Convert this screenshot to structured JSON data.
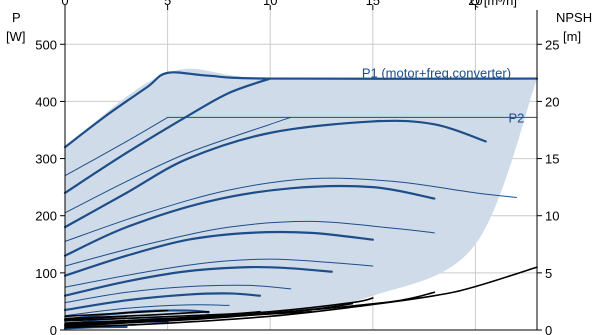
{
  "colors": {
    "curve": "#1d4e89",
    "envelope_fill": "#cfdbe8",
    "npsh": "#000000",
    "grid": "#cccccc",
    "axis": "#000000"
  },
  "chart_data": {
    "type": "line",
    "title": "",
    "grid": true,
    "x_axis": {
      "label": "Q [m³/h]",
      "ticks": [
        0,
        5,
        10,
        15,
        20
      ],
      "tick_labels": [
        "0",
        "5",
        "10",
        "15",
        "20"
      ],
      "range": [
        0,
        23
      ]
    },
    "y_left": {
      "label_line1": "P",
      "label_line2": "[W]",
      "ticks": [
        0,
        100,
        200,
        300,
        400,
        500
      ],
      "tick_labels": [
        "0",
        "100",
        "200",
        "300",
        "400",
        "500"
      ],
      "range": [
        0,
        560
      ]
    },
    "y_right": {
      "label_line1": "NPSH",
      "label_line2": "[m]",
      "ticks": [
        0,
        5,
        10,
        15,
        20,
        25
      ],
      "tick_labels": [
        "0",
        "5",
        "10",
        "15",
        "20",
        "25"
      ],
      "range": [
        0,
        28
      ]
    },
    "envelope": {
      "upper": [
        [
          0,
          320
        ],
        [
          5,
          450
        ],
        [
          10,
          440
        ],
        [
          23,
          440
        ]
      ],
      "lower": [
        [
          0,
          0
        ],
        [
          10,
          30
        ],
        [
          15,
          60
        ],
        [
          20,
          150
        ],
        [
          23,
          440
        ]
      ]
    },
    "labels": [
      {
        "text": "P1 (motor+freq.converter)",
        "x": 18.1,
        "y": 442
      },
      {
        "text": "P2",
        "x": 22.0,
        "y": 363
      }
    ],
    "series": [
      {
        "axis": "P",
        "role": "P1",
        "points": [
          [
            0,
            320
          ],
          [
            2,
            375
          ],
          [
            4,
            425
          ],
          [
            5,
            450
          ],
          [
            7,
            445
          ],
          [
            10,
            440
          ],
          [
            23,
            440
          ]
        ]
      },
      {
        "axis": "P",
        "role": "P2",
        "points": [
          [
            5,
            372
          ],
          [
            23,
            372
          ]
        ]
      },
      {
        "axis": "P",
        "role": "P1",
        "points": [
          [
            0,
            240
          ],
          [
            3,
            310
          ],
          [
            6,
            375
          ],
          [
            8,
            415
          ],
          [
            10,
            440
          ]
        ]
      },
      {
        "axis": "P",
        "role": "P1",
        "points": [
          [
            0,
            180
          ],
          [
            3,
            240
          ],
          [
            6,
            300
          ],
          [
            10,
            345
          ],
          [
            15,
            365
          ],
          [
            18,
            360
          ],
          [
            20.5,
            330
          ]
        ]
      },
      {
        "axis": "P",
        "role": "P1",
        "points": [
          [
            0,
            130
          ],
          [
            3,
            180
          ],
          [
            7,
            225
          ],
          [
            11,
            248
          ],
          [
            15,
            250
          ],
          [
            18,
            230
          ]
        ]
      },
      {
        "axis": "P",
        "role": "P1",
        "points": [
          [
            0,
            95
          ],
          [
            3,
            130
          ],
          [
            6,
            158
          ],
          [
            9,
            170
          ],
          [
            12,
            170
          ],
          [
            15,
            158
          ]
        ]
      },
      {
        "axis": "P",
        "role": "P1",
        "points": [
          [
            0,
            60
          ],
          [
            3,
            85
          ],
          [
            6,
            103
          ],
          [
            9,
            110
          ],
          [
            11,
            108
          ],
          [
            13,
            102
          ]
        ]
      },
      {
        "axis": "P",
        "role": "P1",
        "points": [
          [
            0,
            35
          ],
          [
            3,
            52
          ],
          [
            6,
            62
          ],
          [
            8,
            64
          ],
          [
            9.5,
            60
          ]
        ]
      },
      {
        "axis": "P",
        "role": "P1",
        "points": [
          [
            0,
            18
          ],
          [
            2,
            27
          ],
          [
            4,
            33
          ],
          [
            6,
            34
          ],
          [
            7,
            31
          ]
        ]
      },
      {
        "axis": "P",
        "role": "P1",
        "points": [
          [
            0,
            8
          ],
          [
            2,
            13
          ],
          [
            3.5,
            15
          ],
          [
            5,
            14
          ]
        ]
      },
      {
        "axis": "P",
        "role": "P1",
        "points": [
          [
            0,
            3
          ],
          [
            1.5,
            5
          ],
          [
            3,
            5.5
          ]
        ]
      },
      {
        "axis": "P",
        "role": "P2",
        "points": [
          [
            0,
            270
          ],
          [
            3,
            330
          ],
          [
            5,
            372
          ]
        ]
      },
      {
        "axis": "P",
        "role": "P2",
        "points": [
          [
            0,
            205
          ],
          [
            3,
            260
          ],
          [
            6,
            310
          ],
          [
            10,
            360
          ],
          [
            11,
            372
          ]
        ]
      },
      {
        "axis": "P",
        "role": "P2",
        "points": [
          [
            0,
            155
          ],
          [
            4,
            205
          ],
          [
            8,
            245
          ],
          [
            12,
            265
          ],
          [
            16,
            260
          ],
          [
            20,
            240
          ],
          [
            22,
            232
          ]
        ]
      },
      {
        "axis": "P",
        "role": "P2",
        "points": [
          [
            0,
            112
          ],
          [
            4,
            150
          ],
          [
            8,
            180
          ],
          [
            12,
            190
          ],
          [
            16,
            178
          ],
          [
            18,
            170
          ]
        ]
      },
      {
        "axis": "P",
        "role": "P2",
        "points": [
          [
            0,
            75
          ],
          [
            4,
            102
          ],
          [
            7,
            118
          ],
          [
            10,
            124
          ],
          [
            13,
            118
          ],
          [
            15,
            112
          ]
        ]
      },
      {
        "axis": "P",
        "role": "P2",
        "points": [
          [
            0,
            48
          ],
          [
            3,
            66
          ],
          [
            6,
            76
          ],
          [
            9,
            78
          ],
          [
            11,
            72
          ]
        ]
      },
      {
        "axis": "P",
        "role": "P2",
        "points": [
          [
            0,
            25
          ],
          [
            3,
            38
          ],
          [
            6,
            44
          ],
          [
            8,
            43
          ]
        ]
      },
      {
        "axis": "P",
        "role": "P2",
        "points": [
          [
            0,
            12
          ],
          [
            2,
            18
          ],
          [
            4,
            21
          ],
          [
            5.5,
            20
          ]
        ]
      },
      {
        "axis": "P",
        "role": "P2",
        "points": [
          [
            0,
            5
          ],
          [
            2,
            8
          ],
          [
            3.5,
            9
          ]
        ]
      },
      {
        "axis": "NPSH",
        "points": [
          [
            0,
            0.2
          ],
          [
            5,
            0.6
          ],
          [
            10,
            1.2
          ],
          [
            14,
            2.0
          ],
          [
            18,
            3.0
          ],
          [
            20,
            3.8
          ],
          [
            23,
            5.5
          ]
        ]
      },
      {
        "axis": "NPSH",
        "points": [
          [
            0,
            0.4
          ],
          [
            6,
            0.9
          ],
          [
            11,
            1.6
          ],
          [
            16,
            2.5
          ],
          [
            18,
            3.3
          ]
        ]
      },
      {
        "axis": "NPSH",
        "points": [
          [
            0,
            0.6
          ],
          [
            5,
            1.0
          ],
          [
            10,
            1.6
          ],
          [
            14,
            2.4
          ],
          [
            15,
            2.8
          ]
        ]
      },
      {
        "axis": "NPSH",
        "points": [
          [
            0,
            0.3
          ],
          [
            8,
            1.2
          ],
          [
            12,
            1.8
          ],
          [
            14,
            2.3
          ]
        ]
      },
      {
        "axis": "NPSH",
        "points": [
          [
            0,
            0.5
          ],
          [
            6,
            1.0
          ],
          [
            10,
            1.4
          ],
          [
            12,
            1.6
          ]
        ]
      },
      {
        "axis": "NPSH",
        "points": [
          [
            0,
            0.8
          ],
          [
            4,
            1.1
          ],
          [
            8,
            1.4
          ],
          [
            9.5,
            1.6
          ]
        ]
      },
      {
        "axis": "NPSH",
        "points": [
          [
            0,
            1.0
          ],
          [
            4,
            1.3
          ],
          [
            7,
            1.6
          ]
        ]
      },
      {
        "axis": "NPSH",
        "points": [
          [
            0,
            1.2
          ],
          [
            3,
            1.5
          ],
          [
            5,
            1.7
          ]
        ]
      },
      {
        "axis": "NPSH",
        "points": [
          [
            0,
            0.9
          ],
          [
            2,
            1.1
          ],
          [
            3,
            1.2
          ]
        ]
      }
    ]
  }
}
